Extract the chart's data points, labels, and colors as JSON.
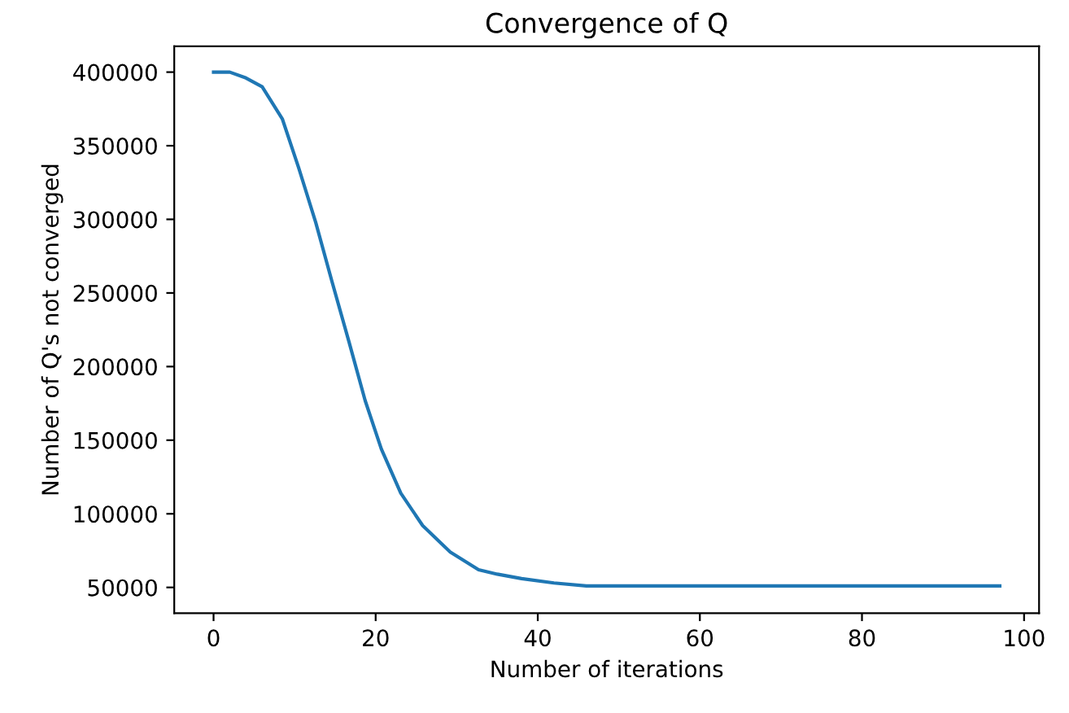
{
  "chart_data": {
    "type": "line",
    "title": "Convergence of Q",
    "xlabel": "Number of iterations",
    "ylabel": "Number of Q's not converged",
    "series": [
      {
        "color": "#1f77b4",
        "x": [
          0,
          2,
          4,
          6,
          8.5,
          10.5,
          12.6,
          14.6,
          16.7,
          18.7,
          20.7,
          23.1,
          25.8,
          29.2,
          32.7,
          35,
          38,
          42,
          46,
          50,
          60,
          70,
          80,
          90,
          97
        ],
        "values": [
          400000,
          400000,
          396000,
          390000,
          368000,
          335000,
          298000,
          258000,
          217000,
          177000,
          144000,
          114000,
          92000,
          74000,
          62000,
          59000,
          56000,
          53000,
          51000,
          51000,
          51000,
          51000,
          51000,
          51000,
          51000
        ]
      }
    ],
    "xlim": [
      -4.85,
      101.85
    ],
    "ylim": [
      32500,
      417500
    ],
    "xticks": [
      0,
      20,
      40,
      60,
      80,
      100
    ],
    "yticks": [
      50000,
      100000,
      150000,
      200000,
      250000,
      300000,
      350000,
      400000
    ],
    "grid": false
  }
}
